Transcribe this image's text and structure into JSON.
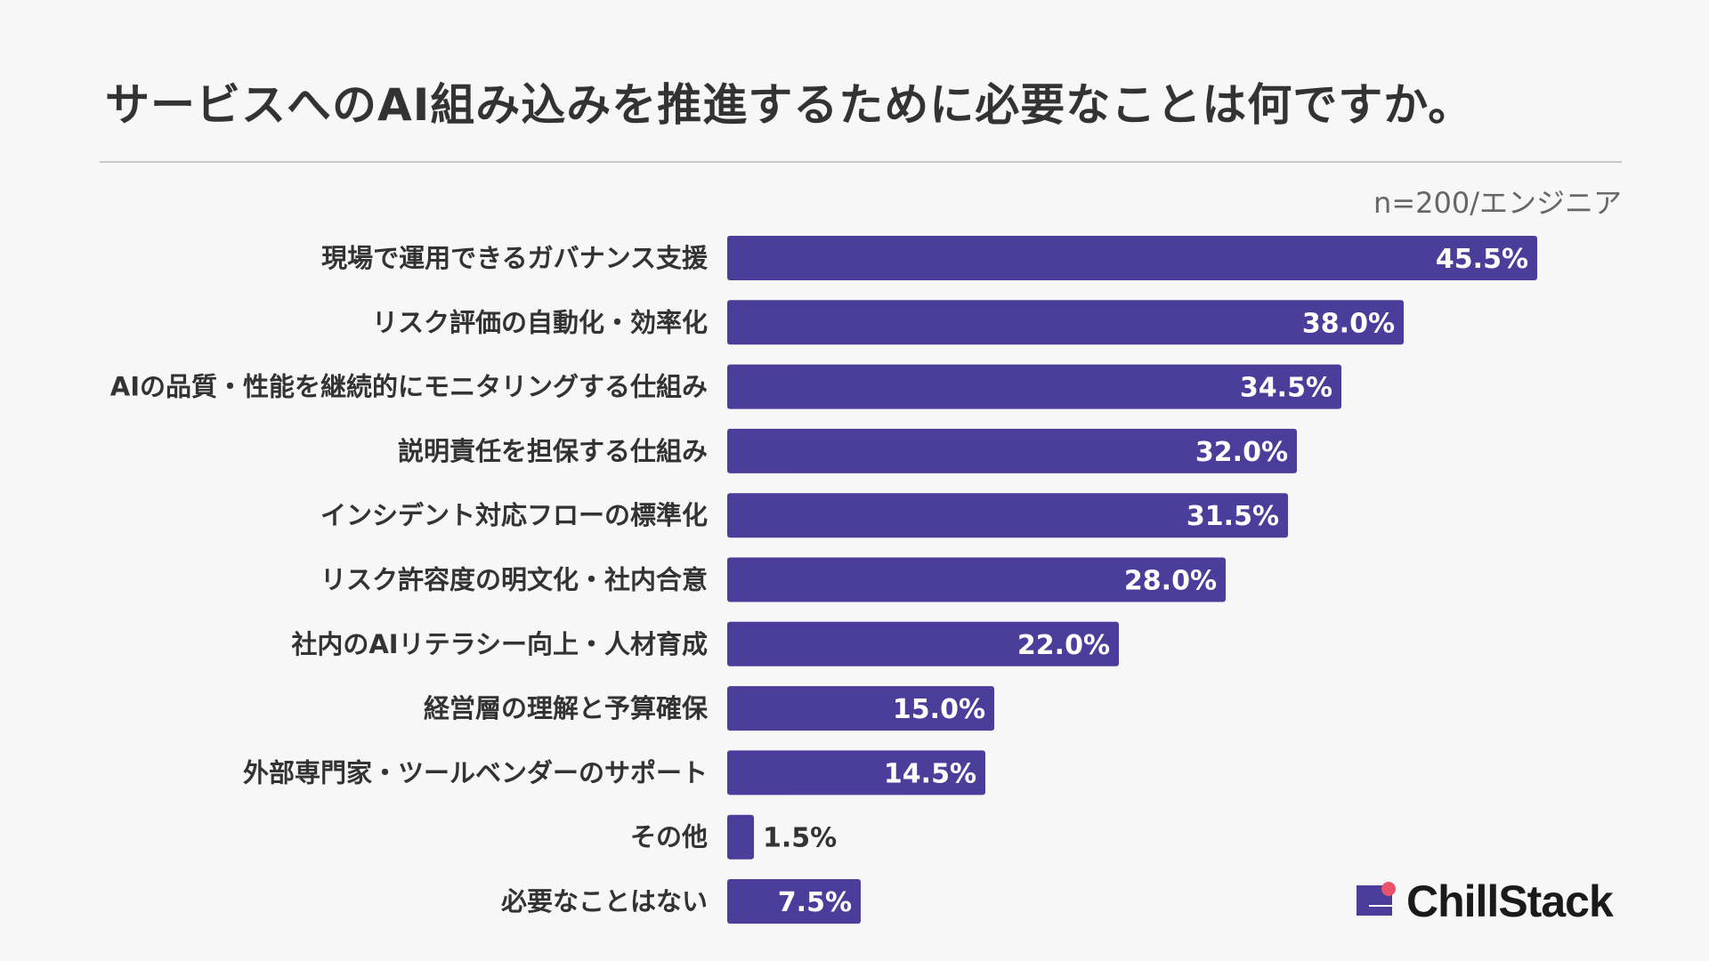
{
  "header": {
    "title": "サービスへのAI組み込みを推進するために必要なことは何ですか。",
    "note": "n=200/エンジニア"
  },
  "logo": {
    "text": "ChillStack"
  },
  "colors": {
    "bar": "#4b3e9a",
    "accent_dot": "#e9546b"
  },
  "chart_data": {
    "type": "bar",
    "orientation": "horizontal",
    "title": "サービスへのAI組み込みを推進するために必要なことは何ですか。",
    "unit": "%",
    "categories": [
      "現場で運用できるガバナンス支援",
      "リスク評価の自動化・効率化",
      "AIの品質・性能を継続的にモニタリングする仕組み",
      "説明責任を担保する仕組み",
      "インシデント対応フローの標準化",
      "リスク許容度の明文化・社内合意",
      "社内のAIリテラシー向上・人材育成",
      "経営層の理解と予算確保",
      "外部専門家・ツールベンダーのサポート",
      "その他",
      "必要なことはない"
    ],
    "values": [
      45.5,
      38.0,
      34.5,
      32.0,
      31.5,
      28.0,
      22.0,
      15.0,
      14.5,
      1.5,
      7.5
    ],
    "value_labels": [
      "45.5%",
      "38.0%",
      "34.5%",
      "32.0%",
      "31.5%",
      "28.0%",
      "22.0%",
      "15.0%",
      "14.5%",
      "1.5%",
      "7.5%"
    ],
    "grid": false,
    "legend": "none"
  }
}
